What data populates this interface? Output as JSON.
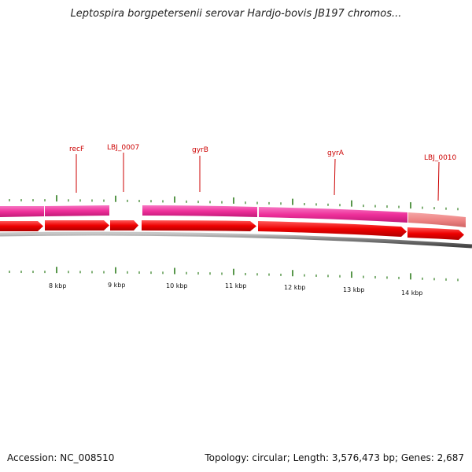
{
  "title": "Leptospira borgpetersenii serovar Hardjo-bovis JB197 chromos...",
  "footer": {
    "accession": "Accession: NC_008510",
    "summary": "Topology: circular; Length: 3,576,473 bp; Genes: 2,687"
  },
  "colors": {
    "cds_arrow": "#ee0000",
    "feature_bar": "#ee2f9a",
    "feature_bar_end": "#ee8585",
    "tick": "#2f7d1e",
    "backbone": "#777777",
    "label": "#cc0000"
  },
  "gene_labels": [
    "recF",
    "LBJ_0007",
    "gyrB",
    "gyrA",
    "LBJ_0010"
  ],
  "kbp_labels": [
    "8 kbp",
    "9 kbp",
    "10 kbp",
    "11 kbp",
    "12 kbp",
    "13 kbp",
    "14 kbp"
  ]
}
